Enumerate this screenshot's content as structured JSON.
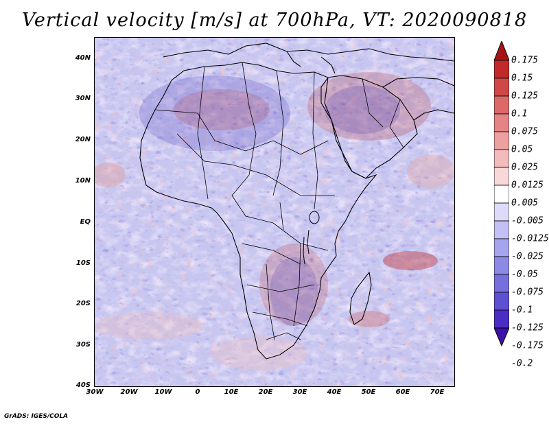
{
  "title": "Vertical velocity [m/s] at 700hPa, VT: 2020090818",
  "y_ticks": [
    "40N",
    "30N",
    "20N",
    "10N",
    "EQ",
    "10S",
    "20S",
    "30S",
    "40S"
  ],
  "x_ticks": [
    "30W",
    "20W",
    "10W",
    "0",
    "10E",
    "20E",
    "30E",
    "40E",
    "50E",
    "60E",
    "70E"
  ],
  "colorbar": {
    "colors": [
      "#3a10a8",
      "#4a2ec4",
      "#5e50d2",
      "#7670dc",
      "#8c8ae4",
      "#a6a4ec",
      "#c2c0f4",
      "#dcdcf8",
      "#ffffff",
      "#f8d8d8",
      "#f2bcbc",
      "#eca0a0",
      "#e48484",
      "#dc6868",
      "#cf4848",
      "#c22a2a",
      "#a81414"
    ],
    "labels": [
      "0.175",
      "0.15",
      "0.125",
      "0.1",
      "0.075",
      "0.05",
      "0.025",
      "0.0125",
      "0.005",
      "-0.005",
      "-0.0125",
      "-0.025",
      "-0.05",
      "-0.075",
      "-0.1",
      "-0.125",
      "-0.175",
      "-0.2"
    ]
  },
  "footer": "GrADS: IGES/COLA"
}
